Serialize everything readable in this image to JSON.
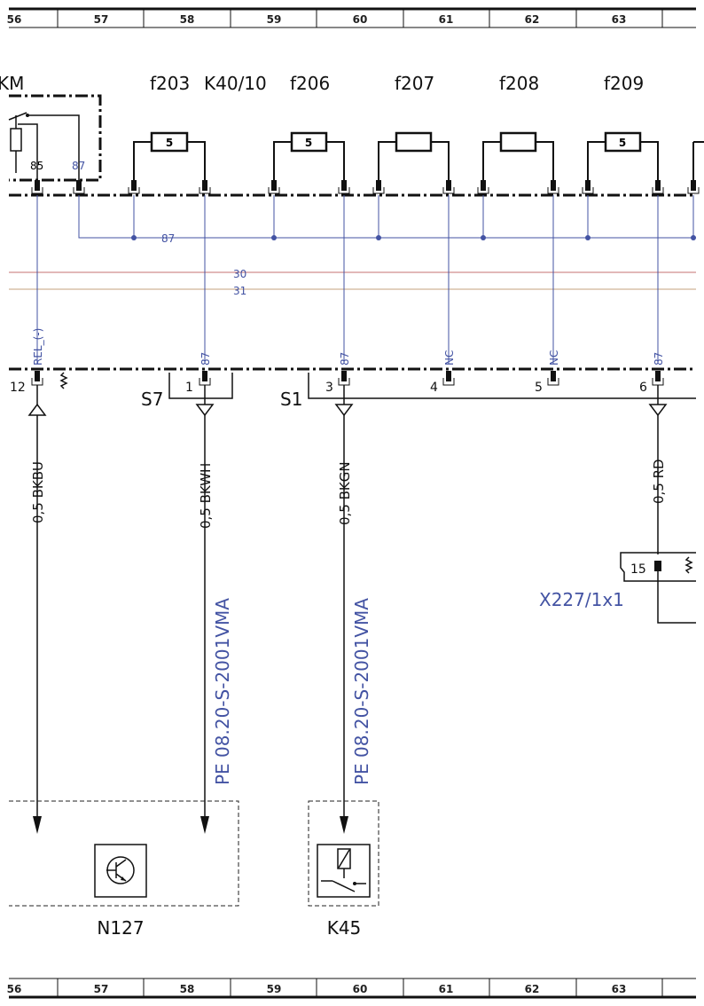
{
  "grid": {
    "top": [
      "56",
      "57",
      "58",
      "59",
      "60",
      "61",
      "62",
      "63"
    ],
    "bottom": [
      "56",
      "57",
      "58",
      "59",
      "60",
      "61",
      "62",
      "63"
    ]
  },
  "relay": {
    "label": "KM",
    "pins": [
      "85",
      "87"
    ]
  },
  "module": "K40/10",
  "fuses": [
    {
      "label": "f203",
      "rating": "5"
    },
    {
      "label": "f206",
      "rating": "5"
    },
    {
      "label": "f207"
    },
    {
      "label": "f208"
    },
    {
      "label": "f209",
      "rating": "5"
    }
  ],
  "bus_labels": [
    "87",
    "30",
    "31"
  ],
  "connector_pins": [
    {
      "wire": "REL_(-)",
      "pin": "12"
    },
    {
      "wire": "87",
      "pin": "1"
    },
    {
      "wire": "87",
      "pin": "3"
    },
    {
      "wire": "NC",
      "pin": "4"
    },
    {
      "wire": "NC",
      "pin": "5"
    },
    {
      "wire": "87",
      "pin": "6"
    }
  ],
  "plugs": [
    "S7",
    "S1"
  ],
  "wires": [
    "0,5 BKBU",
    "0,5 BKWH",
    "0,5 BKGN",
    "0,5 RD"
  ],
  "references": [
    "PE 08.20-S-2001VMA",
    "PE 08.20-S-2001VMA"
  ],
  "connector": {
    "pin": "15",
    "label": "X227/1x1"
  },
  "devices": [
    "N127",
    "K45"
  ]
}
